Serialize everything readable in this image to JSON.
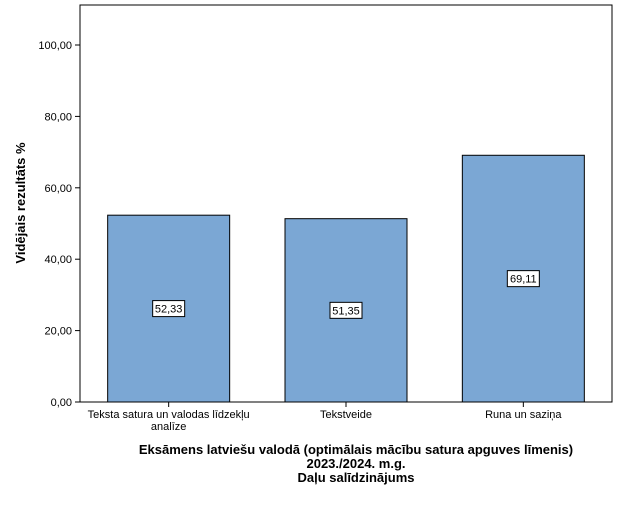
{
  "chart_data": {
    "type": "bar",
    "categories": [
      [
        "Teksta satura un valodas līdzekļu",
        "analīze"
      ],
      [
        "Tekstveide"
      ],
      [
        "Runa un saziņa"
      ]
    ],
    "values": [
      52.33,
      51.35,
      69.11
    ],
    "value_labels": [
      "52,33",
      "51,35",
      "69,11"
    ],
    "ylabel": "Vidējais rezultāts %",
    "xlabel": [
      "Eksāmens latviešu valodā (optimālais mācību satura apguves līmenis)",
      "2023./2024. m.g.",
      "Daļu salīdzinājums"
    ],
    "ylim": [
      0,
      100
    ],
    "yticks": [
      0,
      20,
      40,
      60,
      80,
      100
    ],
    "ytick_labels": [
      "0,00",
      "20,00",
      "40,00",
      "60,00",
      "80,00",
      "100,00"
    ],
    "bar_color": "#7ba7d4",
    "grid": false
  }
}
